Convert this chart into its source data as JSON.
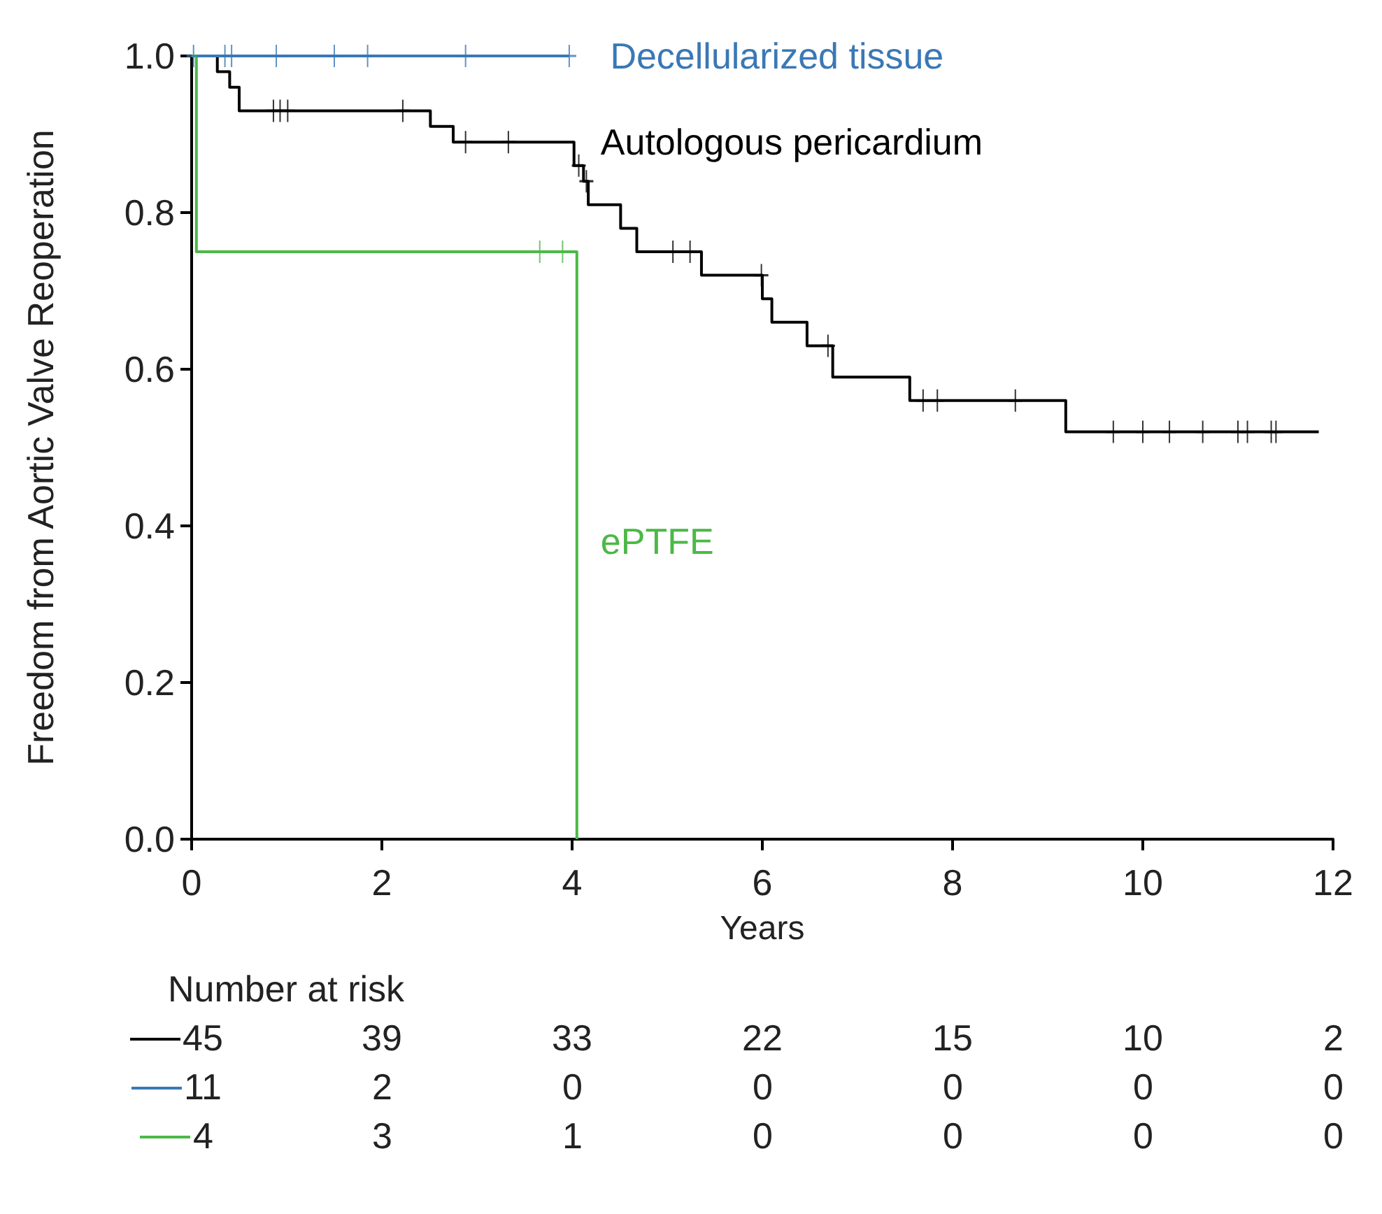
{
  "chart_data": {
    "type": "step",
    "xlabel": "Years",
    "ylabel": "Freedom from Aortic Valve Reoperation",
    "xlim": [
      0,
      12
    ],
    "xticks": [
      0,
      2,
      4,
      6,
      8,
      10,
      12
    ],
    "ylim": [
      0,
      1
    ],
    "yticks": [
      {
        "value": 0,
        "label": "0.0"
      },
      {
        "value": 0.2,
        "label": "0.2"
      },
      {
        "value": 0.4,
        "label": "0.4"
      },
      {
        "value": 0.6,
        "label": "0.6"
      },
      {
        "value": 0.8,
        "label": "0.8"
      },
      {
        "value": 1,
        "label": "1.0"
      }
    ],
    "grid": false,
    "legend": false,
    "line_style": "solid",
    "series": [
      {
        "name": "Autologous pericardium",
        "color": "#000000",
        "x": [
          0,
          0.27,
          0.4,
          0.5,
          2.51,
          2.75,
          4.02,
          4.12,
          4.17,
          4.51,
          4.68,
          5.36,
          6.0,
          6.1,
          6.47,
          6.74,
          7.55,
          9.19,
          11.85
        ],
        "values": [
          1,
          0.98,
          0.96,
          0.93,
          0.91,
          0.89,
          0.86,
          0.84,
          0.81,
          0.78,
          0.75,
          0.72,
          0.69,
          0.66,
          0.63,
          0.59,
          0.56,
          0.52,
          0.52
        ]
      },
      {
        "name": "Decellularized tissue",
        "color": "#3a78b5",
        "x": [
          0,
          3.97
        ],
        "values": [
          1,
          1
        ]
      },
      {
        "name": "ePTFE",
        "color": "#4cb848",
        "x": [
          0,
          0.05,
          4.05
        ],
        "values": [
          1,
          0.75,
          0
        ]
      },
      {
        "type": "scatter",
        "marker": "cross",
        "color": "#000000",
        "x": [
          0.86,
          0.93,
          1.01,
          2.22,
          2.88,
          3.33,
          4.07,
          4.15,
          5.06,
          5.24,
          5.99,
          6.69,
          7.69,
          7.84,
          8.66,
          9.69,
          10.0,
          10.28,
          10.63,
          11.0,
          11.1,
          11.35,
          11.4
        ],
        "values": [
          0.93,
          0.93,
          0.93,
          0.93,
          0.89,
          0.89,
          0.86,
          0.84,
          0.75,
          0.75,
          0.72,
          0.63,
          0.56,
          0.56,
          0.56,
          0.52,
          0.52,
          0.52,
          0.52,
          0.52,
          0.52,
          0.52,
          0.52
        ]
      },
      {
        "type": "scatter",
        "marker": "cross",
        "color": "#3a78b5",
        "x": [
          0.02,
          0.35,
          0.42,
          0.89,
          1.5,
          1.85,
          2.88,
          3.97
        ],
        "values": [
          1,
          1,
          1,
          1,
          1,
          1,
          1,
          1
        ]
      },
      {
        "type": "scatter",
        "marker": "cross",
        "color": "#4cb848",
        "x": [
          3.66,
          3.9
        ],
        "values": [
          0.75,
          0.75
        ]
      }
    ],
    "annotations": [
      "Number at risk",
      "45",
      "39",
      "33",
      "22",
      "15",
      "10",
      "2",
      "11",
      "2",
      "0",
      "0",
      "0",
      "0",
      "0",
      "4",
      "3",
      "1",
      "0",
      "0",
      "0",
      "0"
    ]
  }
}
